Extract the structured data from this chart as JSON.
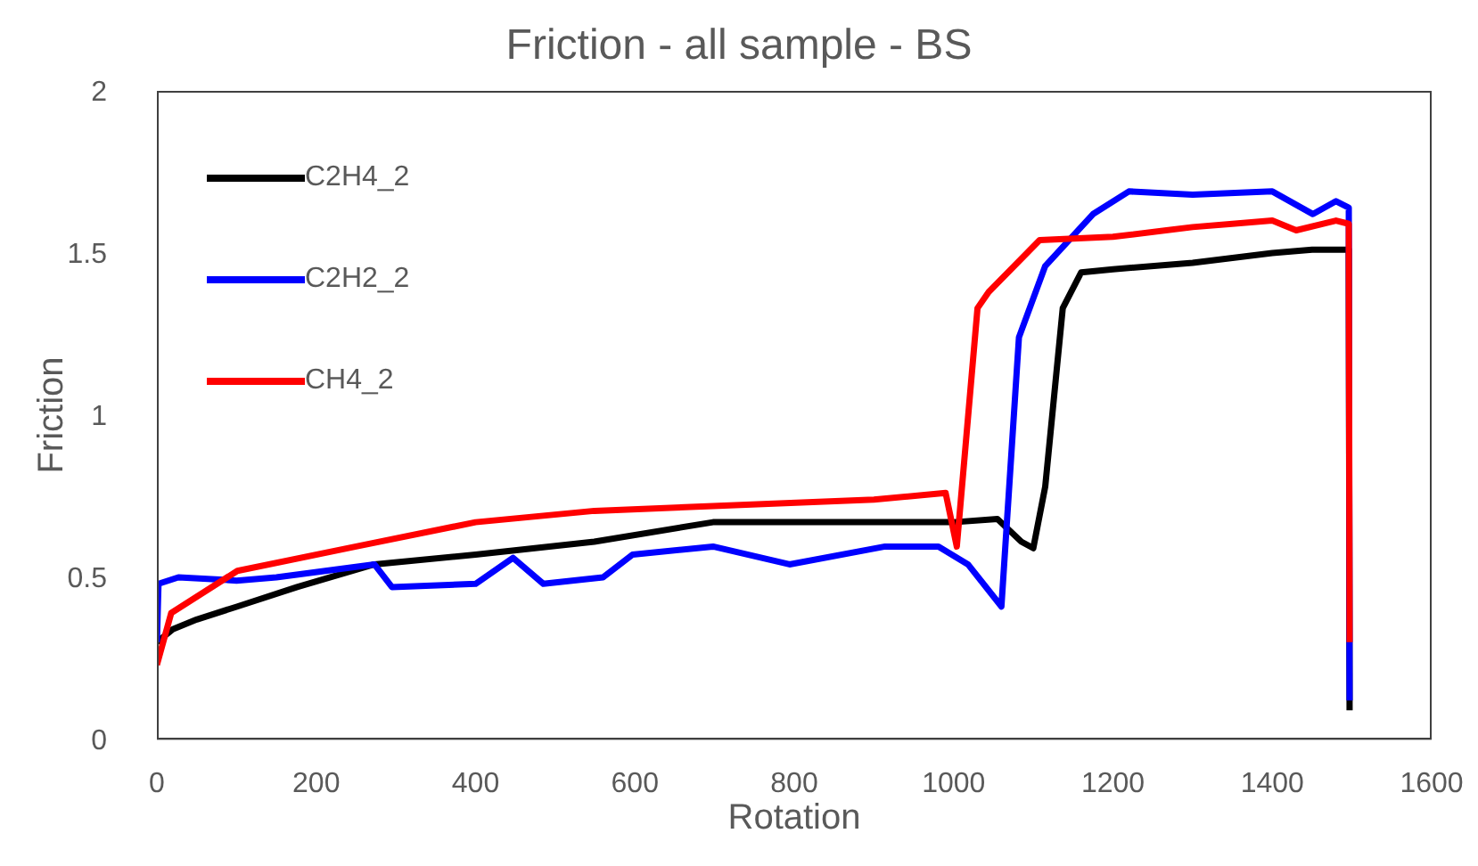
{
  "chart_data": {
    "type": "line",
    "title": "Friction - all sample - BS",
    "xlabel": "Rotation",
    "ylabel": "Friction",
    "xlim": [
      0,
      1600
    ],
    "xticks": [
      0,
      200,
      400,
      600,
      800,
      1000,
      1200,
      1400,
      1600
    ],
    "ylim": [
      0,
      2
    ],
    "yticks": [
      0,
      0.5,
      1,
      1.5,
      2
    ],
    "grid": false,
    "legend": "top left",
    "marker": "none",
    "line_style": "solid",
    "series": [
      {
        "name": "C2H4_2",
        "color": "#000000",
        "x": [
          0,
          20,
          50,
          101,
          176,
          273,
          400,
          549,
          698,
          800,
          900,
          1000,
          1055,
          1085,
          1100,
          1115,
          1137,
          1160,
          1200,
          1300,
          1400,
          1450,
          1496,
          1497
        ],
        "values": [
          0.3,
          0.34,
          0.37,
          0.41,
          0.47,
          0.54,
          0.57,
          0.61,
          0.67,
          0.67,
          0.67,
          0.67,
          0.68,
          0.61,
          0.59,
          0.78,
          1.33,
          1.44,
          1.45,
          1.47,
          1.5,
          1.51,
          1.51,
          0.09
        ]
      },
      {
        "name": "C2H2_2",
        "color": "#0000ff",
        "x": [
          0,
          2,
          27,
          100,
          150,
          273,
          295,
          400,
          447,
          485,
          560,
          597,
          698,
          794,
          914,
          981,
          1018,
          1060,
          1082,
          1115,
          1175,
          1220,
          1300,
          1400,
          1451,
          1480,
          1496,
          1497
        ],
        "values": [
          0.3,
          0.48,
          0.5,
          0.49,
          0.5,
          0.54,
          0.47,
          0.48,
          0.56,
          0.48,
          0.5,
          0.57,
          0.595,
          0.54,
          0.595,
          0.595,
          0.54,
          0.41,
          1.24,
          1.46,
          1.62,
          1.69,
          1.68,
          1.69,
          1.62,
          1.66,
          1.64,
          0.12
        ]
      },
      {
        "name": "CH4_2",
        "color": "#ff0000",
        "x": [
          0,
          18,
          101,
          250,
          400,
          549,
          698,
          900,
          990,
          1004,
          1030,
          1044,
          1108,
          1200,
          1300,
          1400,
          1430,
          1480,
          1496,
          1497
        ],
        "values": [
          0.23,
          0.39,
          0.52,
          0.595,
          0.67,
          0.705,
          0.72,
          0.74,
          0.76,
          0.595,
          1.33,
          1.38,
          1.54,
          1.55,
          1.58,
          1.6,
          1.57,
          1.6,
          1.59,
          0.3
        ]
      }
    ]
  }
}
